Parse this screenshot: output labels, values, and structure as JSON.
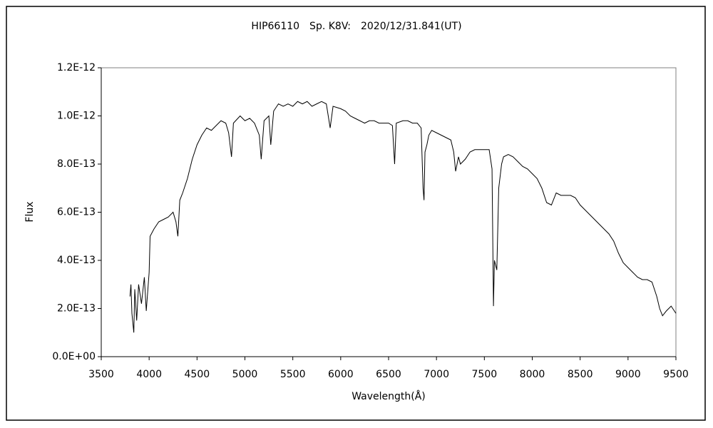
{
  "chart_data": {
    "type": "line",
    "title": "HIP66110　Sp. K8V:　2020/12/31.841(UT)",
    "x_label": "Wavelength(Å)",
    "y_label": "Flux",
    "color": "#000000",
    "grid": false,
    "xlim": [
      3500,
      9500
    ],
    "xticks": [
      3500,
      4000,
      4500,
      5000,
      5500,
      6000,
      6500,
      7000,
      7500,
      8000,
      8500,
      9000,
      9500
    ],
    "ylim": [
      0,
      1.2e-12
    ],
    "yticks": [
      {
        "value": 0,
        "label": "0.0E+00"
      },
      {
        "value": 2e-13,
        "label": "2.0E-13"
      },
      {
        "value": 4e-13,
        "label": "4.0E-13"
      },
      {
        "value": 6e-13,
        "label": "6.0E-13"
      },
      {
        "value": 8e-13,
        "label": "8.0E-13"
      },
      {
        "value": 1e-12,
        "label": "1.0E-12"
      },
      {
        "value": 1.2e-12,
        "label": "1.2E-12"
      }
    ],
    "x": [
      3800,
      3810,
      3820,
      3840,
      3850,
      3870,
      3890,
      3920,
      3950,
      3970,
      4000,
      4010,
      4050,
      4100,
      4150,
      4200,
      4250,
      4280,
      4300,
      4320,
      4350,
      4400,
      4450,
      4500,
      4550,
      4600,
      4650,
      4700,
      4750,
      4800,
      4830,
      4860,
      4880,
      4950,
      5000,
      5050,
      5100,
      5150,
      5170,
      5200,
      5250,
      5270,
      5300,
      5350,
      5400,
      5450,
      5500,
      5550,
      5600,
      5650,
      5700,
      5750,
      5800,
      5850,
      5890,
      5920,
      6000,
      6050,
      6100,
      6150,
      6200,
      6250,
      6300,
      6350,
      6400,
      6450,
      6500,
      6540,
      6563,
      6580,
      6650,
      6700,
      6750,
      6800,
      6840,
      6860,
      6870,
      6880,
      6900,
      6920,
      6950,
      7000,
      7050,
      7100,
      7150,
      7180,
      7200,
      7230,
      7250,
      7300,
      7350,
      7400,
      7450,
      7500,
      7550,
      7580,
      7595,
      7605,
      7630,
      7650,
      7680,
      7700,
      7750,
      7800,
      7850,
      7900,
      7950,
      8000,
      8050,
      8100,
      8150,
      8200,
      8250,
      8300,
      8350,
      8400,
      8450,
      8500,
      8550,
      8600,
      8650,
      8700,
      8750,
      8800,
      8850,
      8900,
      8950,
      9000,
      9050,
      9100,
      9150,
      9200,
      9250,
      9300,
      9330,
      9360,
      9400,
      9450,
      9500
    ],
    "values": [
      2.5e-13,
      3e-13,
      1.8e-13,
      1e-13,
      2.8e-13,
      1.5e-13,
      3e-13,
      2.2e-13,
      3.3e-13,
      1.9e-13,
      3.5e-13,
      5e-13,
      5.3e-13,
      5.6e-13,
      5.7e-13,
      5.8e-13,
      6e-13,
      5.6e-13,
      5e-13,
      6.5e-13,
      6.8e-13,
      7.4e-13,
      8.2e-13,
      8.8e-13,
      9.2e-13,
      9.5e-13,
      9.4e-13,
      9.6e-13,
      9.8e-13,
      9.7e-13,
      9.3e-13,
      8.3e-13,
      9.7e-13,
      1e-12,
      9.8e-13,
      9.9e-13,
      9.7e-13,
      9.2e-13,
      8.2e-13,
      9.8e-13,
      1e-12,
      8.8e-13,
      1.02e-12,
      1.05e-12,
      1.04e-12,
      1.05e-12,
      1.04e-12,
      1.06e-12,
      1.05e-12,
      1.06e-12,
      1.04e-12,
      1.05e-12,
      1.06e-12,
      1.05e-12,
      9.5e-13,
      1.04e-12,
      1.03e-12,
      1.02e-12,
      1e-12,
      9.9e-13,
      9.8e-13,
      9.7e-13,
      9.8e-13,
      9.8e-13,
      9.7e-13,
      9.7e-13,
      9.7e-13,
      9.6e-13,
      8e-13,
      9.7e-13,
      9.8e-13,
      9.8e-13,
      9.7e-13,
      9.7e-13,
      9.5e-13,
      7e-13,
      6.5e-13,
      8.5e-13,
      8.8e-13,
      9.2e-13,
      9.4e-13,
      9.3e-13,
      9.2e-13,
      9.1e-13,
      9e-13,
      8.5e-13,
      7.7e-13,
      8.3e-13,
      8e-13,
      8.2e-13,
      8.5e-13,
      8.6e-13,
      8.6e-13,
      8.6e-13,
      8.6e-13,
      7.8e-13,
      2.1e-13,
      4e-13,
      3.6e-13,
      7e-13,
      8e-13,
      8.3e-13,
      8.4e-13,
      8.3e-13,
      8.1e-13,
      7.9e-13,
      7.8e-13,
      7.6e-13,
      7.4e-13,
      7e-13,
      6.4e-13,
      6.3e-13,
      6.8e-13,
      6.7e-13,
      6.7e-13,
      6.7e-13,
      6.6e-13,
      6.3e-13,
      6.1e-13,
      5.9e-13,
      5.7e-13,
      5.5e-13,
      5.3e-13,
      5.1e-13,
      4.8e-13,
      4.3e-13,
      3.9e-13,
      3.7e-13,
      3.5e-13,
      3.3e-13,
      3.2e-13,
      3.2e-13,
      3.1e-13,
      2.5e-13,
      2e-13,
      1.7e-13,
      1.9e-13,
      2.1e-13,
      1.8e-13
    ]
  }
}
